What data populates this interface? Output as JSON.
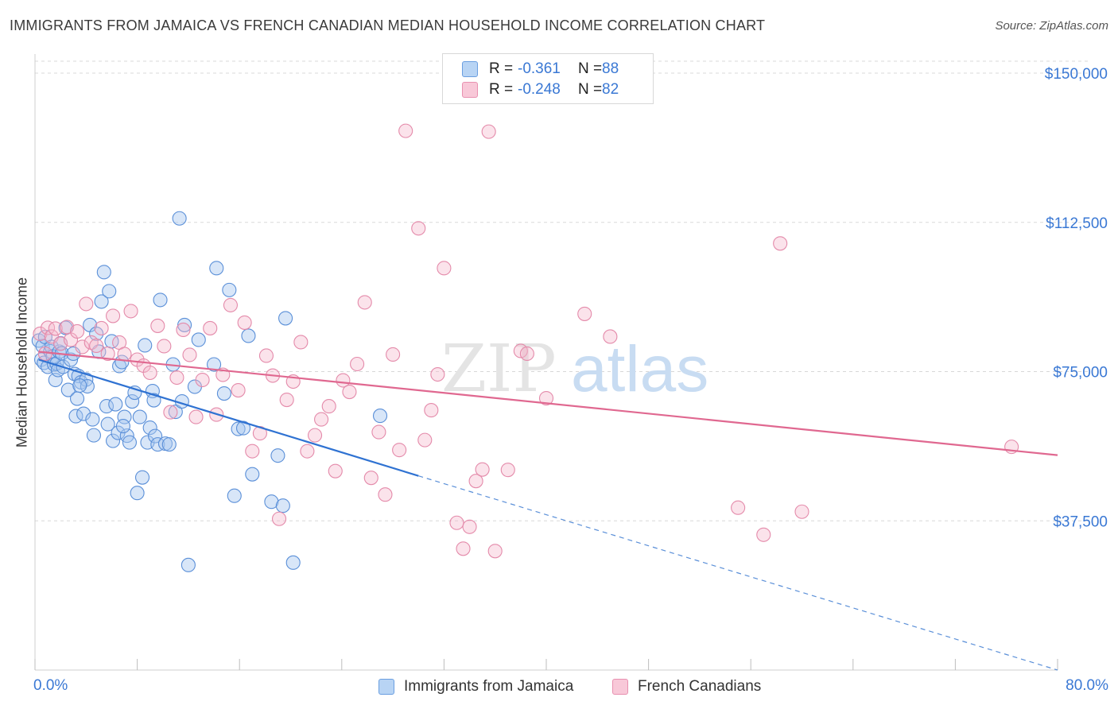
{
  "title": "IMMIGRANTS FROM JAMAICA VS FRENCH CANADIAN MEDIAN HOUSEHOLD INCOME CORRELATION CHART",
  "source": "Source: ZipAtlas.com",
  "watermark": {
    "zip": "ZIP",
    "atlas": "atlas"
  },
  "legend": {
    "rows": [
      {
        "r_label": "R =",
        "r_value": "-0.361",
        "n_label": "N =",
        "n_value": "88"
      },
      {
        "r_label": "R =",
        "r_value": "-0.248",
        "n_label": "N =",
        "n_value": "82"
      }
    ]
  },
  "bottom_legend": {
    "series1": "Immigrants from Jamaica",
    "series2": "French Canadians"
  },
  "x_axis": {
    "min_label": "0.0%",
    "max_label": "80.0%"
  },
  "colors": {
    "blue": "#3a78d4",
    "blue_fill": "#a8c8f0",
    "pink": "#e06890",
    "pink_fill": "#f4b8cc",
    "grid": "#d8d8d8",
    "axis_text": "#3a78d4"
  },
  "chart_data": {
    "type": "scatter",
    "title": "IMMIGRANTS FROM JAMAICA VS FRENCH CANADIAN MEDIAN HOUSEHOLD INCOME CORRELATION CHART",
    "xlabel": "",
    "ylabel": "Median Household Income",
    "xlim": [
      0,
      80
    ],
    "ylim": [
      0,
      153000
    ],
    "y_ticks": [
      37500,
      75000,
      112500,
      150000
    ],
    "y_tick_labels": [
      "$37,500",
      "$75,000",
      "$112,500",
      "$150,000"
    ],
    "grid": true,
    "legend_position": "top-center",
    "series": [
      {
        "name": "Immigrants from Jamaica",
        "color": "#3a78d4",
        "r": -0.361,
        "n": 88,
        "trend": {
          "x_start": 0.3,
          "y_start": 78000,
          "x_solid_end": 30,
          "y_solid_end": 48800,
          "x_end": 80,
          "y_end": 0
        },
        "points": [
          [
            0.3,
            82800
          ],
          [
            0.5,
            78000
          ],
          [
            0.6,
            81400
          ],
          [
            0.7,
            77200
          ],
          [
            0.8,
            83700
          ],
          [
            1.0,
            76200
          ],
          [
            1.2,
            80100
          ],
          [
            1.3,
            81200
          ],
          [
            1.4,
            78800
          ],
          [
            1.5,
            76800
          ],
          [
            1.6,
            72900
          ],
          [
            1.7,
            77000
          ],
          [
            1.8,
            75400
          ],
          [
            1.9,
            80000
          ],
          [
            2.0,
            82100
          ],
          [
            2.1,
            79600
          ],
          [
            2.2,
            76200
          ],
          [
            2.4,
            86000
          ],
          [
            2.6,
            70400
          ],
          [
            2.8,
            78000
          ],
          [
            3.0,
            79500
          ],
          [
            3.1,
            74400
          ],
          [
            3.2,
            63800
          ],
          [
            3.3,
            68200
          ],
          [
            3.4,
            73900
          ],
          [
            3.6,
            72300
          ],
          [
            3.8,
            64400
          ],
          [
            4.0,
            73000
          ],
          [
            4.1,
            71300
          ],
          [
            4.3,
            86700
          ],
          [
            4.5,
            63000
          ],
          [
            4.6,
            59000
          ],
          [
            4.8,
            84500
          ],
          [
            5.0,
            80000
          ],
          [
            5.2,
            92600
          ],
          [
            5.4,
            100000
          ],
          [
            5.6,
            66300
          ],
          [
            5.7,
            61800
          ],
          [
            5.8,
            95200
          ],
          [
            6.0,
            82600
          ],
          [
            6.1,
            57600
          ],
          [
            6.3,
            66800
          ],
          [
            6.5,
            59600
          ],
          [
            6.6,
            76400
          ],
          [
            6.8,
            77400
          ],
          [
            7.0,
            63600
          ],
          [
            7.2,
            58900
          ],
          [
            7.4,
            57200
          ],
          [
            7.6,
            67500
          ],
          [
            7.8,
            69700
          ],
          [
            8.0,
            44500
          ],
          [
            8.2,
            63600
          ],
          [
            8.4,
            48400
          ],
          [
            8.6,
            81600
          ],
          [
            8.8,
            57200
          ],
          [
            9.0,
            60900
          ],
          [
            9.2,
            70100
          ],
          [
            9.4,
            58800
          ],
          [
            9.6,
            56700
          ],
          [
            9.8,
            93000
          ],
          [
            10.2,
            56900
          ],
          [
            10.5,
            56700
          ],
          [
            10.8,
            76800
          ],
          [
            11.0,
            64900
          ],
          [
            11.3,
            113500
          ],
          [
            11.5,
            67500
          ],
          [
            11.7,
            86700
          ],
          [
            12.0,
            26400
          ],
          [
            12.5,
            71200
          ],
          [
            12.8,
            83000
          ],
          [
            14.0,
            76800
          ],
          [
            14.2,
            101000
          ],
          [
            14.8,
            69500
          ],
          [
            15.2,
            95500
          ],
          [
            15.6,
            43800
          ],
          [
            15.9,
            60600
          ],
          [
            16.3,
            60800
          ],
          [
            16.7,
            84000
          ],
          [
            17.0,
            49200
          ],
          [
            18.5,
            42300
          ],
          [
            19.0,
            53900
          ],
          [
            19.4,
            41300
          ],
          [
            19.6,
            88400
          ],
          [
            20.2,
            27000
          ],
          [
            27.0,
            63900
          ],
          [
            3.5,
            71500
          ],
          [
            6.9,
            61300
          ],
          [
            9.3,
            67800
          ]
        ]
      },
      {
        "name": "French Canadians",
        "color": "#e06890",
        "r": -0.248,
        "n": 82,
        "trend": {
          "x_start": 0.3,
          "y_start": 80000,
          "x_end": 80,
          "y_end": 54000
        },
        "points": [
          [
            0.4,
            84500
          ],
          [
            0.8,
            79500
          ],
          [
            1.0,
            86000
          ],
          [
            1.3,
            83800
          ],
          [
            1.6,
            85800
          ],
          [
            2.0,
            82000
          ],
          [
            2.5,
            86200
          ],
          [
            2.8,
            83000
          ],
          [
            3.3,
            85100
          ],
          [
            3.7,
            81200
          ],
          [
            4.0,
            92000
          ],
          [
            4.4,
            82300
          ],
          [
            4.8,
            81500
          ],
          [
            5.2,
            85900
          ],
          [
            5.7,
            79500
          ],
          [
            6.1,
            89000
          ],
          [
            6.6,
            82300
          ],
          [
            7.0,
            79400
          ],
          [
            7.5,
            90200
          ],
          [
            8.0,
            78000
          ],
          [
            8.5,
            76500
          ],
          [
            9.0,
            74700
          ],
          [
            9.6,
            86500
          ],
          [
            10.1,
            81400
          ],
          [
            10.6,
            64800
          ],
          [
            11.1,
            73500
          ],
          [
            11.6,
            85500
          ],
          [
            12.1,
            79200
          ],
          [
            12.6,
            63600
          ],
          [
            13.1,
            72900
          ],
          [
            13.7,
            85900
          ],
          [
            14.2,
            64200
          ],
          [
            14.7,
            74200
          ],
          [
            15.3,
            91700
          ],
          [
            15.9,
            70300
          ],
          [
            16.4,
            87300
          ],
          [
            17.0,
            55000
          ],
          [
            17.6,
            59500
          ],
          [
            18.1,
            79000
          ],
          [
            18.6,
            74000
          ],
          [
            19.1,
            38000
          ],
          [
            19.7,
            67900
          ],
          [
            20.2,
            72500
          ],
          [
            20.8,
            82400
          ],
          [
            21.3,
            55000
          ],
          [
            21.9,
            59000
          ],
          [
            22.4,
            63000
          ],
          [
            23.0,
            66300
          ],
          [
            23.5,
            50000
          ],
          [
            24.1,
            72800
          ],
          [
            24.6,
            69900
          ],
          [
            25.2,
            76900
          ],
          [
            25.8,
            92400
          ],
          [
            26.3,
            48300
          ],
          [
            26.9,
            59800
          ],
          [
            27.4,
            44100
          ],
          [
            28.0,
            79300
          ],
          [
            28.5,
            55300
          ],
          [
            29.0,
            135500
          ],
          [
            30.0,
            111000
          ],
          [
            30.5,
            57800
          ],
          [
            31.0,
            65300
          ],
          [
            31.5,
            74300
          ],
          [
            32.0,
            101000
          ],
          [
            33.0,
            37000
          ],
          [
            33.5,
            30500
          ],
          [
            34.0,
            36000
          ],
          [
            34.5,
            47500
          ],
          [
            35.0,
            50400
          ],
          [
            35.5,
            135300
          ],
          [
            36.0,
            29900
          ],
          [
            37.0,
            50300
          ],
          [
            38.0,
            80200
          ],
          [
            38.5,
            79500
          ],
          [
            40.0,
            68300
          ],
          [
            43.0,
            89500
          ],
          [
            45.0,
            83800
          ],
          [
            55.0,
            40800
          ],
          [
            57.0,
            34000
          ],
          [
            58.3,
            107200
          ],
          [
            60.0,
            39800
          ],
          [
            76.4,
            56100
          ]
        ]
      }
    ]
  }
}
